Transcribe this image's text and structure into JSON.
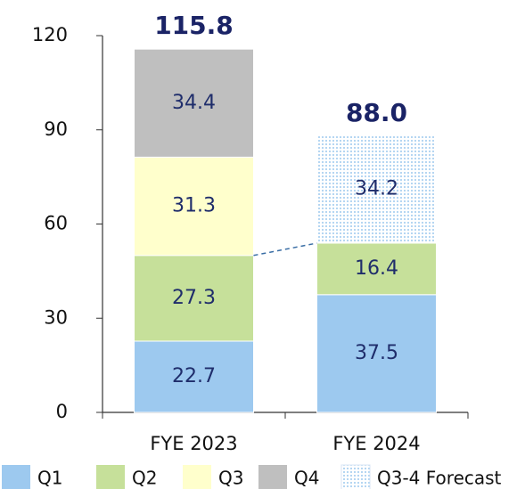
{
  "chart_data": {
    "type": "stacked_bar",
    "categories": [
      "FYE 2023",
      "FYE 2024"
    ],
    "series": [
      {
        "name": "Q1",
        "color": "#9dc9ef",
        "values": [
          22.7,
          37.5
        ]
      },
      {
        "name": "Q2",
        "color": "#c6e09a",
        "values": [
          27.3,
          16.4
        ]
      },
      {
        "name": "Q3",
        "color": "#ffffcc",
        "values": [
          31.3,
          null
        ]
      },
      {
        "name": "Q4",
        "color": "#bfbfbf",
        "values": [
          34.4,
          null
        ]
      },
      {
        "name": "Q3-4 Forecast",
        "color": "#9dc9ef",
        "fill_pattern": "dotted",
        "values": [
          null,
          34.2
        ]
      }
    ],
    "totals": {
      "values": [
        115.8,
        88
      ],
      "value_labels": [
        "115.8",
        "88.0"
      ]
    },
    "ylim": [
      0,
      120
    ],
    "yticks": [
      0,
      30,
      60,
      90,
      120
    ]
  }
}
